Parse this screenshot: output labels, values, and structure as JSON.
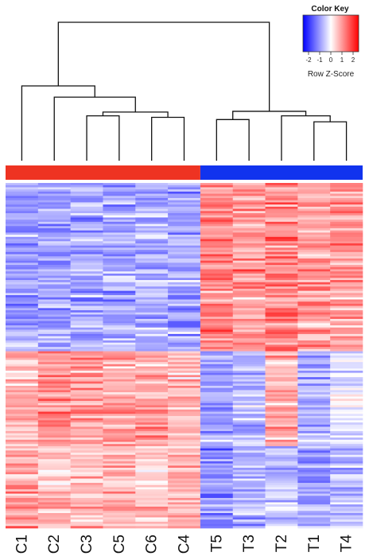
{
  "chart_data": {
    "type": "heatmap",
    "columns": [
      "C1",
      "C2",
      "C3",
      "C5",
      "C6",
      "C4",
      "T5",
      "T3",
      "T2",
      "T1",
      "T4"
    ],
    "column_groups": [
      {
        "members": [
          "C1",
          "C2",
          "C3",
          "C5",
          "C6",
          "C4"
        ],
        "color": "#ee3322"
      },
      {
        "members": [
          "T5",
          "T3",
          "T2",
          "T1",
          "T4"
        ],
        "color": "#1133ee"
      }
    ],
    "row_count": 160,
    "row_blocks": [
      {
        "share": 0.49,
        "values": [
          -1.0,
          -0.9,
          -0.8,
          -0.9,
          -0.7,
          -0.9,
          1.2,
          1.0,
          1.1,
          0.9,
          1.0
        ]
      },
      {
        "share": 0.27,
        "values": [
          0.6,
          1.0,
          0.9,
          0.8,
          0.9,
          0.7,
          -0.9,
          -0.6,
          0.8,
          -0.8,
          -0.3
        ]
      },
      {
        "share": 0.24,
        "values": [
          0.9,
          0.6,
          0.7,
          0.8,
          0.6,
          0.7,
          -1.1,
          -0.7,
          -0.5,
          -0.9,
          -0.6
        ]
      }
    ],
    "dendrogram": {
      "leaves": [
        "C1",
        "C2",
        "C3",
        "C5",
        "C6",
        "C4",
        "T5",
        "T3",
        "T2",
        "T1",
        "T4"
      ],
      "merges": [
        {
          "a": "C3",
          "b": "C5",
          "height": 0.6
        },
        {
          "a": "C6",
          "b": "C4",
          "height": 0.58
        },
        {
          "a": "C3+C5",
          "b": "C6+C4",
          "height": 0.65
        },
        {
          "a": "C2",
          "b": "C3+C5+C6+C4",
          "height": 0.85
        },
        {
          "a": "C1",
          "b": "C2+C3+C5+C6+C4",
          "height": 1.0
        },
        {
          "a": "T1",
          "b": "T4",
          "height": 0.52
        },
        {
          "a": "T2",
          "b": "T1+T4",
          "height": 0.6
        },
        {
          "a": "T5",
          "b": "T3",
          "height": 0.55
        },
        {
          "a": "T5+T3",
          "b": "T2+T1+T4",
          "height": 0.66
        },
        {
          "a": "C",
          "b": "T",
          "height": 3.2
        }
      ]
    },
    "color_scale": {
      "low": "#0000ff",
      "mid": "#ffffff",
      "high": "#ff0000",
      "range": [
        -2.5,
        2.5
      ]
    },
    "color_key": {
      "title": "Color Key",
      "ticks": [
        "-2",
        "-1",
        "0",
        "1",
        "2"
      ],
      "tick_values": [
        -2,
        -1,
        0,
        1,
        2
      ],
      "xlabel": "Row Z-Score"
    }
  }
}
